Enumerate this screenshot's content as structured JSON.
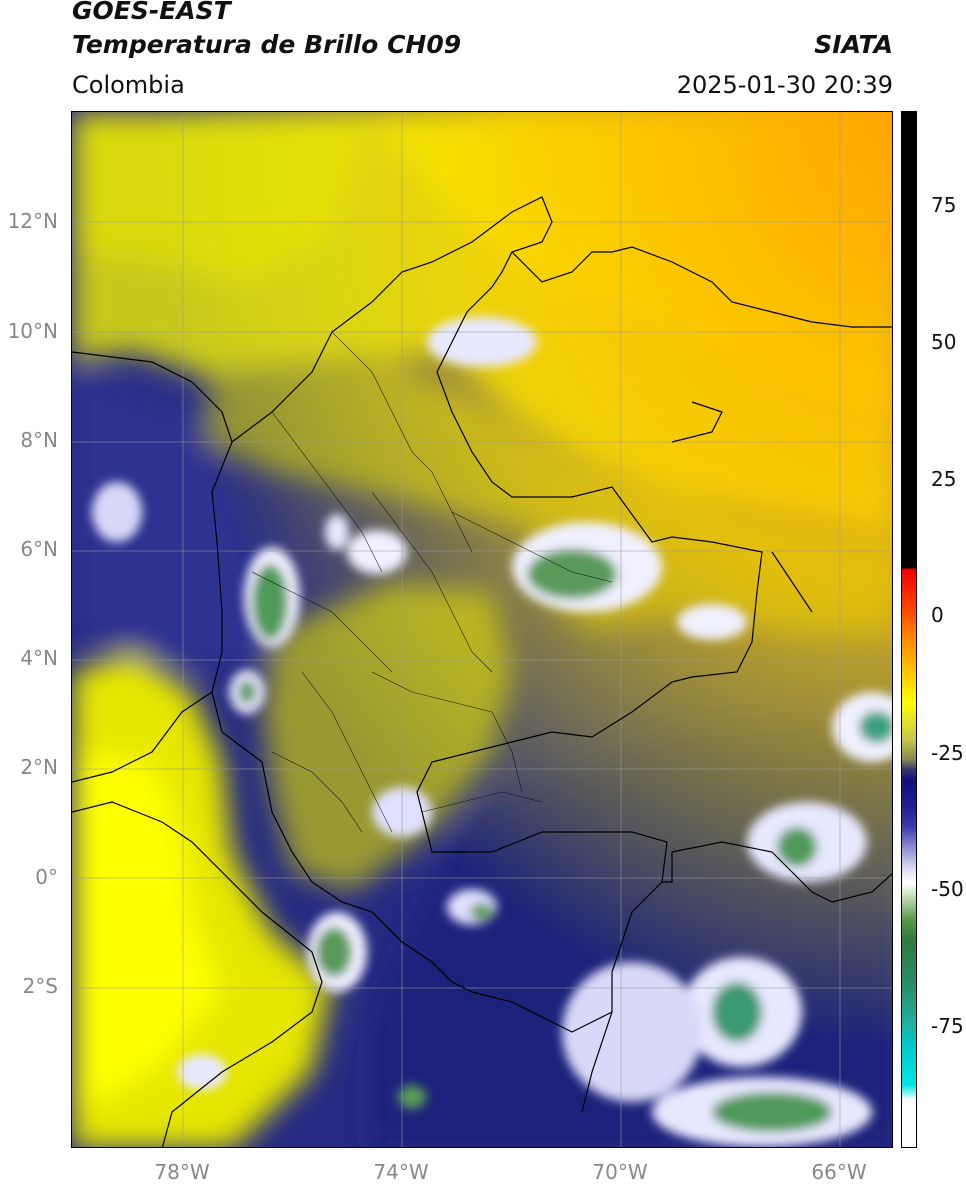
{
  "header": {
    "satellite": "GOES-EAST",
    "product": "Temperatura de Brillo CH09",
    "brand": "SIATA",
    "region": "Colombia",
    "datetime": "2025-01-30 20:39"
  },
  "map": {
    "lat_labels": [
      "12°N",
      "10°N",
      "8°N",
      "6°N",
      "4°N",
      "2°N",
      "0°",
      "2°S"
    ],
    "lon_labels": [
      "78°W",
      "74°W",
      "70°W",
      "66°W"
    ],
    "extent": {
      "lon": [
        -80,
        -65
      ],
      "lat": [
        -5.2,
        14
      ]
    },
    "gridlines": true
  },
  "colorbar": {
    "ticks": [
      "75",
      "50",
      "25",
      "0",
      "-25",
      "-50",
      "-75"
    ],
    "range": [
      -95,
      90
    ],
    "colors": {
      "warm_black": "#000000",
      "red": "#ff0000",
      "orange": "#ff8c00",
      "yellow": "#ffff00",
      "olive": "#a8a830",
      "navy": "#14147a",
      "white": "#ffffff",
      "green": "#3c8f3c",
      "teal": "#28c8a0",
      "cyan": "#00e6e6"
    }
  }
}
